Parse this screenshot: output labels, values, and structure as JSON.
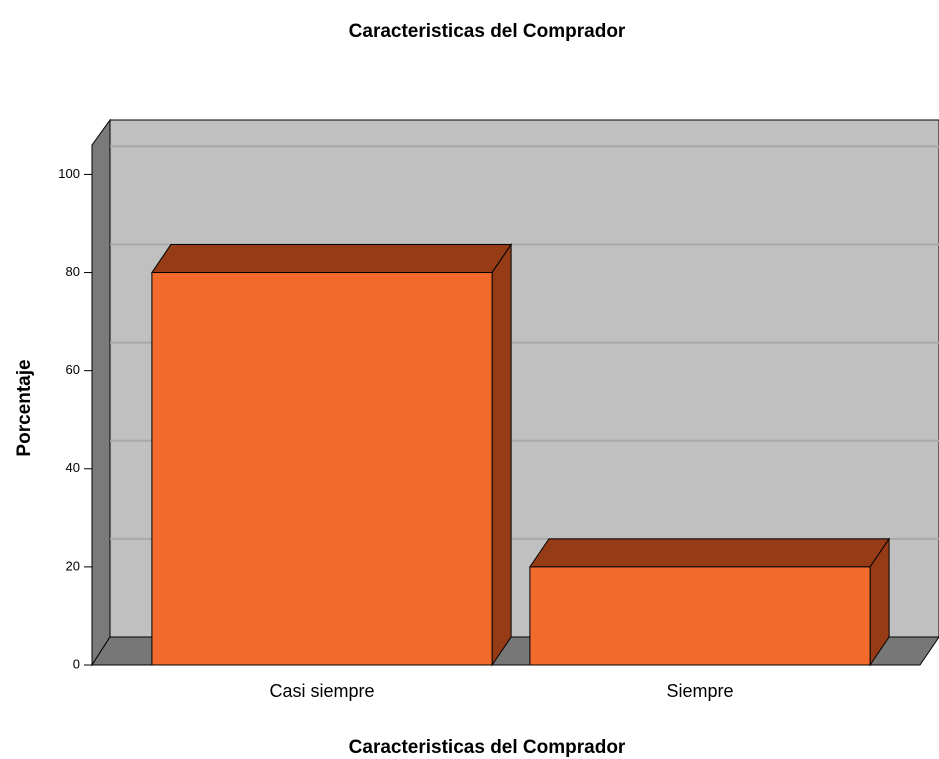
{
  "chart_data": {
    "type": "bar3d",
    "title": "Caracteristicas del Comprador",
    "x_label": "Caracteristicas del Comprador",
    "y_label": "Porcentaje",
    "categories": [
      "Casi siempre",
      "Siempre"
    ],
    "values": [
      80,
      20
    ],
    "color": "#f26a2c",
    "ylim": [
      0,
      106
    ],
    "yticks": [
      0,
      20,
      40,
      60,
      80,
      100
    ],
    "grid": true
  }
}
